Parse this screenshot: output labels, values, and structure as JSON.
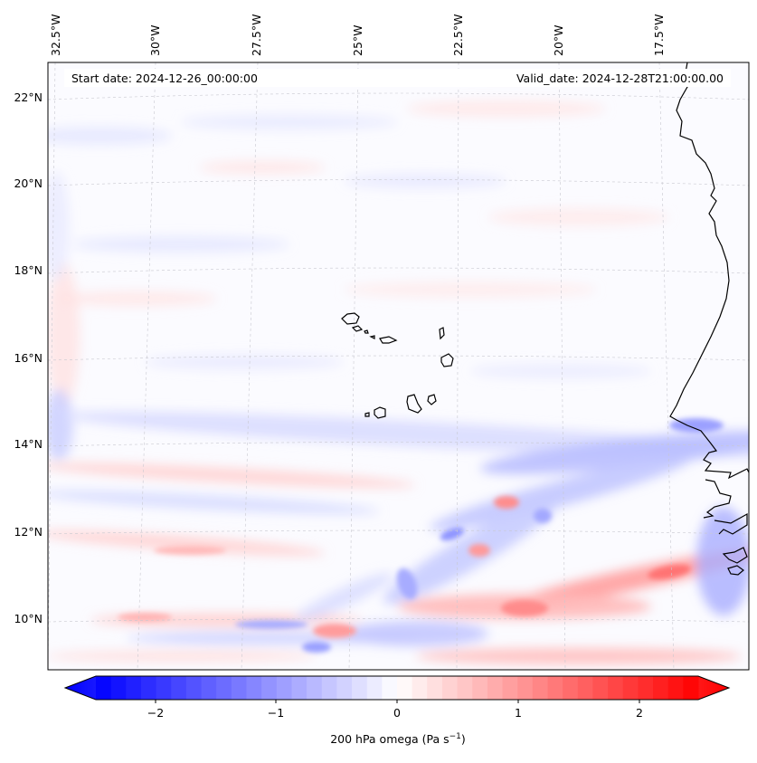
{
  "map": {
    "start_date": "Start date: 2024-12-26_00:00:00",
    "valid_date": "Valid_date: 2024-12-28T21:00:00.00",
    "longitude_labels": [
      "32.5°W",
      "30°W",
      "27.5°W",
      "25°W",
      "22.5°W",
      "20°W",
      "17.5°W"
    ],
    "latitude_labels": [
      "22°N",
      "20°N",
      "18°N",
      "16°N",
      "14°N",
      "12°N",
      "10°N"
    ],
    "features": [
      "Cape Verde islands",
      "West African coastline"
    ]
  },
  "colorbar": {
    "ticks": [
      "−2",
      "−1",
      "0",
      "1",
      "2"
    ],
    "label": "200 hPa omega (Pa s",
    "label_superscript": "−1",
    "label_close": ")",
    "range": [
      -2.6,
      2.6
    ],
    "extend": "both",
    "colormap": "bwr"
  },
  "colors": {
    "negative": "#0000ff",
    "neutral": "#ffffff",
    "positive": "#ff0000",
    "coastline": "#000000",
    "gridline": "#bbbbbb"
  }
}
